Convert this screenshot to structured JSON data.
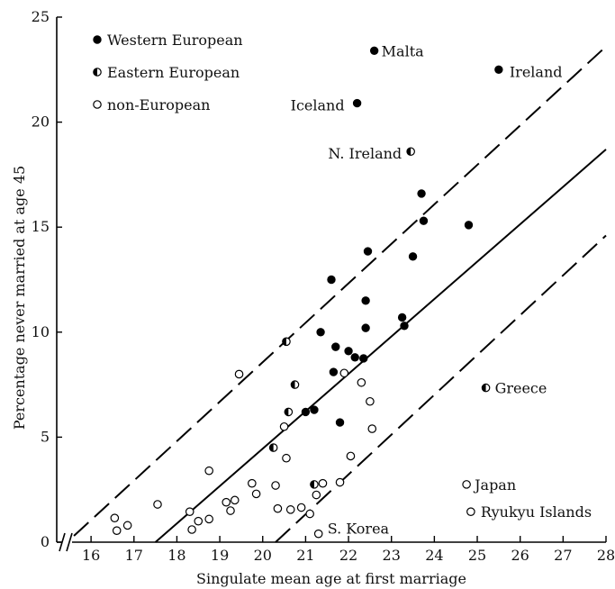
{
  "chart_data": {
    "type": "scatter",
    "title": "",
    "xlabel": "Singulate mean age at first marriage",
    "ylabel": "Percentage never married at age 45",
    "xlim": [
      15.2,
      28
    ],
    "ylim": [
      0,
      25
    ],
    "x_ticks": [
      16,
      17,
      18,
      19,
      20,
      21,
      22,
      23,
      24,
      25,
      26,
      27,
      28
    ],
    "y_ticks": [
      0,
      5,
      10,
      15,
      20,
      25
    ],
    "axis_break": "x",
    "grid": false,
    "legend_position": "top-left",
    "legend": [
      {
        "key": "western",
        "label": "Western European",
        "marker": "filled"
      },
      {
        "key": "eastern",
        "label": "Eastern European",
        "marker": "half"
      },
      {
        "key": "non",
        "label": "non-European",
        "marker": "open"
      }
    ],
    "series": [
      {
        "key": "western",
        "points": [
          [
            22.6,
            23.4
          ],
          [
            25.5,
            22.5
          ],
          [
            22.2,
            20.9
          ],
          [
            23.7,
            16.6
          ],
          [
            23.75,
            15.3
          ],
          [
            24.8,
            15.1
          ],
          [
            22.45,
            13.85
          ],
          [
            23.5,
            13.6
          ],
          [
            21.6,
            12.5
          ],
          [
            22.4,
            11.5
          ],
          [
            23.25,
            10.7
          ],
          [
            23.3,
            10.3
          ],
          [
            22.4,
            10.2
          ],
          [
            21.35,
            10.0
          ],
          [
            21.7,
            9.3
          ],
          [
            22.0,
            9.1
          ],
          [
            22.15,
            8.8
          ],
          [
            22.35,
            8.75
          ],
          [
            21.65,
            8.1
          ],
          [
            21.0,
            6.2
          ],
          [
            21.2,
            6.3
          ],
          [
            21.8,
            5.7
          ]
        ]
      },
      {
        "key": "eastern",
        "points": [
          [
            23.45,
            18.6
          ],
          [
            20.55,
            9.55
          ],
          [
            20.75,
            7.5
          ],
          [
            20.6,
            6.2
          ],
          [
            25.2,
            7.35
          ],
          [
            20.25,
            4.5
          ],
          [
            21.2,
            2.75
          ]
        ]
      },
      {
        "key": "non",
        "points": [
          [
            19.45,
            8.0
          ],
          [
            21.9,
            8.05
          ],
          [
            22.3,
            7.6
          ],
          [
            22.5,
            6.7
          ],
          [
            20.5,
            5.5
          ],
          [
            22.55,
            5.4
          ],
          [
            20.55,
            4.0
          ],
          [
            22.05,
            4.1
          ],
          [
            18.75,
            3.4
          ],
          [
            19.75,
            2.8
          ],
          [
            20.3,
            2.7
          ],
          [
            21.4,
            2.8
          ],
          [
            21.8,
            2.85
          ],
          [
            21.25,
            2.25
          ],
          [
            19.85,
            2.3
          ],
          [
            19.15,
            1.9
          ],
          [
            19.35,
            2.0
          ],
          [
            17.55,
            1.8
          ],
          [
            19.25,
            1.5
          ],
          [
            20.65,
            1.55
          ],
          [
            20.35,
            1.6
          ],
          [
            20.9,
            1.65
          ],
          [
            21.1,
            1.35
          ],
          [
            18.3,
            1.45
          ],
          [
            16.55,
            1.15
          ],
          [
            18.5,
            1.0
          ],
          [
            18.75,
            1.1
          ],
          [
            16.85,
            0.8
          ],
          [
            16.6,
            0.55
          ],
          [
            18.35,
            0.6
          ],
          [
            21.3,
            0.4
          ],
          [
            24.75,
            2.75
          ],
          [
            24.85,
            1.45
          ]
        ]
      }
    ],
    "reference_lines": [
      {
        "style": "solid",
        "from": [
          17.5,
          0
        ],
        "to": [
          28,
          18.7
        ]
      },
      {
        "style": "dashed",
        "from": [
          15.6,
          0.3
        ],
        "to": [
          28,
          23.6
        ]
      },
      {
        "style": "dashed",
        "from": [
          20.3,
          0
        ],
        "to": [
          28,
          14.6
        ]
      }
    ],
    "annotations": [
      {
        "text": "Malta",
        "at": [
          22.6,
          23.4
        ],
        "anchor": "start",
        "dx": 8,
        "dy": 6
      },
      {
        "text": "Ireland",
        "at": [
          25.5,
          22.5
        ],
        "anchor": "start",
        "dx": 12,
        "dy": 8
      },
      {
        "text": "Iceland",
        "at": [
          22.2,
          20.9
        ],
        "anchor": "end",
        "dx": -14,
        "dy": 8
      },
      {
        "text": "N. Ireland",
        "at": [
          23.45,
          18.6
        ],
        "anchor": "end",
        "dx": -10,
        "dy": 8
      },
      {
        "text": "Greece",
        "at": [
          25.2,
          7.35
        ],
        "anchor": "start",
        "dx": 10,
        "dy": 6
      },
      {
        "text": "Japan",
        "at": [
          24.75,
          2.75
        ],
        "anchor": "start",
        "dx": 9,
        "dy": 6
      },
      {
        "text": "Ryukyu Islands",
        "at": [
          24.85,
          1.45
        ],
        "anchor": "start",
        "dx": 11,
        "dy": 6
      },
      {
        "text": "S. Korea",
        "at": [
          21.3,
          0.4
        ],
        "anchor": "start",
        "dx": 10,
        "dy": 0
      }
    ]
  }
}
